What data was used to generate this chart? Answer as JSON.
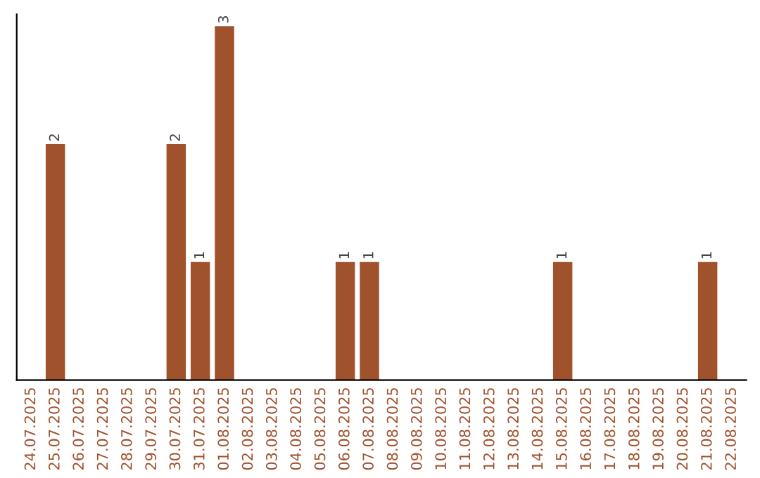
{
  "chart_data": {
    "type": "bar",
    "categories": [
      "24.07.2025",
      "25.07.2025",
      "26.07.2025",
      "27.07.2025",
      "28.07.2025",
      "29.07.2025",
      "30.07.2025",
      "31.07.2025",
      "01.08.2025",
      "02.08.2025",
      "03.08.2025",
      "04.08.2025",
      "05.08.2025",
      "06.08.2025",
      "07.08.2025",
      "08.08.2025",
      "09.08.2025",
      "10.08.2025",
      "11.08.2025",
      "12.08.2025",
      "13.08.2025",
      "14.08.2025",
      "15.08.2025",
      "16.08.2025",
      "17.08.2025",
      "18.08.2025",
      "19.08.2025",
      "20.08.2025",
      "21.08.2025",
      "22.08.2025"
    ],
    "values": [
      0,
      2,
      0,
      0,
      0,
      0,
      2,
      1,
      3,
      0,
      0,
      0,
      0,
      1,
      1,
      0,
      0,
      0,
      0,
      0,
      0,
      0,
      1,
      0,
      0,
      0,
      0,
      0,
      1,
      0
    ],
    "value_labels": [
      null,
      "2",
      null,
      null,
      null,
      null,
      "2",
      "1",
      "3",
      null,
      null,
      null,
      null,
      "1",
      "1",
      null,
      null,
      null,
      null,
      null,
      null,
      null,
      "1",
      null,
      null,
      null,
      null,
      null,
      "1",
      null
    ],
    "color": "#a0522d",
    "ylim": [
      0,
      3.1
    ],
    "tick_labels": "x",
    "grid": false,
    "legend": false
  }
}
